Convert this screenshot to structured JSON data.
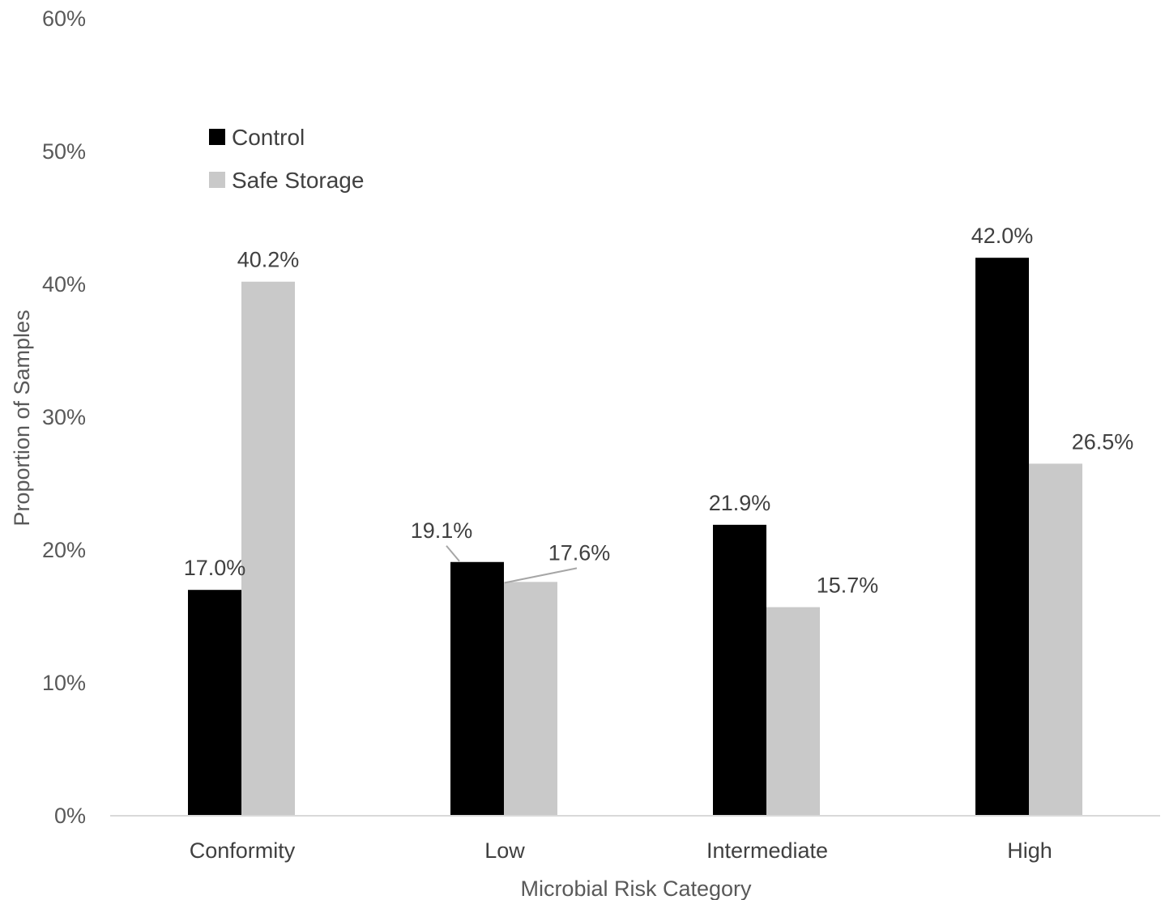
{
  "chart_data": {
    "type": "bar",
    "xlabel": "Microbial Risk Category",
    "ylabel": "Proportion of Samples",
    "ylim": [
      0,
      60
    ],
    "yticks": [
      0,
      10,
      20,
      30,
      40,
      50,
      60
    ],
    "ytick_labels": [
      "0%",
      "10%",
      "20%",
      "30%",
      "40%",
      "50%",
      "60%"
    ],
    "categories": [
      "Conformity",
      "Low",
      "Intermediate",
      "High"
    ],
    "series": [
      {
        "name": "Control",
        "color": "#000000",
        "values": [
          17.0,
          19.1,
          21.9,
          42.0
        ],
        "labels": [
          "17.0%",
          "19.1%",
          "21.9%",
          "42.0%"
        ]
      },
      {
        "name": "Safe Storage",
        "color": "#c9c9c9",
        "values": [
          40.2,
          17.6,
          15.7,
          26.5
        ],
        "labels": [
          "40.2%",
          "17.6%",
          "15.7%",
          "26.5%"
        ]
      }
    ],
    "legend_position": "top-left",
    "grid": false
  }
}
